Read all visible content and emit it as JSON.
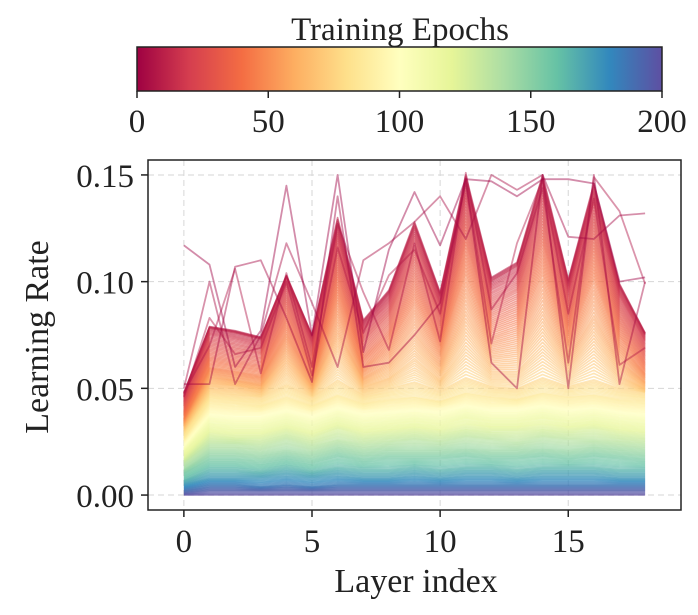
{
  "chart_data": {
    "type": "line",
    "xlabel": "Layer index",
    "ylabel": "Learning Rate",
    "xlim": [
      -1.4,
      19.4
    ],
    "ylim": [
      -0.007,
      0.157
    ],
    "x_ticks": [
      0,
      5,
      10,
      15
    ],
    "x_tick_labels": [
      "0",
      "5",
      "10",
      "15"
    ],
    "y_ticks": [
      0.0,
      0.05,
      0.1,
      0.15
    ],
    "y_tick_labels": [
      "0.00",
      "0.05",
      "0.10",
      "0.15"
    ],
    "grid": true,
    "colorbar": {
      "label": "Training Epochs",
      "min": 0,
      "max": 200,
      "ticks": [
        0,
        50,
        100,
        150,
        200
      ],
      "tick_labels": [
        "0",
        "50",
        "100",
        "150",
        "200"
      ],
      "colormap": "Spectral",
      "colormap_stops": [
        "#9e0142",
        "#d53e4f",
        "#f46d43",
        "#fdae61",
        "#fee08b",
        "#ffffbf",
        "#e6f598",
        "#abdda4",
        "#66c2a5",
        "#3288bd",
        "#5e4fa2"
      ]
    },
    "x": [
      0,
      1,
      2,
      3,
      4,
      5,
      6,
      7,
      8,
      9,
      10,
      11,
      12,
      13,
      14,
      15,
      16,
      17,
      18
    ],
    "series": [
      {
        "epoch": 0,
        "values": [
          0.117,
          0.108,
          0.06,
          0.077,
          0.145,
          0.075,
          0.15,
          0.067,
          0.115,
          0.142,
          0.117,
          0.148,
          0.147,
          0.14,
          0.148,
          0.148,
          0.146,
          0.1,
          0.102
        ]
      },
      {
        "epoch": 2,
        "values": [
          0.052,
          0.052,
          0.107,
          0.11,
          0.083,
          0.053,
          0.14,
          0.06,
          0.062,
          0.075,
          0.09,
          0.147,
          0.062,
          0.05,
          0.15,
          0.121,
          0.12,
          0.131,
          0.132
        ]
      },
      {
        "epoch": 4,
        "values": [
          0.05,
          0.1,
          0.052,
          0.075,
          0.118,
          0.09,
          0.06,
          0.11,
          0.118,
          0.128,
          0.14,
          0.12,
          0.15,
          0.143,
          0.15,
          0.05,
          0.15,
          0.052,
          0.1
        ]
      },
      {
        "epoch": 6,
        "values": [
          0.048,
          0.07,
          0.106,
          0.057,
          0.104,
          0.06,
          0.127,
          0.095,
          0.068,
          0.118,
          0.072,
          0.151,
          0.087,
          0.104,
          0.144,
          0.062,
          0.149,
          0.133,
          0.099
        ]
      },
      {
        "epoch": 8,
        "values": [
          0.046,
          0.083,
          0.066,
          0.069,
          0.1,
          0.056,
          0.116,
          0.076,
          0.103,
          0.115,
          0.085,
          0.148,
          0.071,
          0.118,
          0.148,
          0.085,
          0.139,
          0.061,
          0.069
        ]
      },
      {
        "epoch": 10,
        "values": [
          0.048,
          0.079,
          0.077,
          0.074,
          0.103,
          0.075,
          0.13,
          0.082,
          0.096,
          0.128,
          0.095,
          0.15,
          0.102,
          0.109,
          0.15,
          0.101,
          0.146,
          0.099,
          0.076
        ]
      },
      {
        "epoch": 14,
        "values": [
          0.047,
          0.078,
          0.076,
          0.073,
          0.102,
          0.074,
          0.126,
          0.08,
          0.094,
          0.125,
          0.093,
          0.146,
          0.1,
          0.107,
          0.146,
          0.099,
          0.142,
          0.097,
          0.075
        ]
      },
      {
        "epoch": 20,
        "values": [
          0.045,
          0.075,
          0.073,
          0.07,
          0.098,
          0.071,
          0.12,
          0.077,
          0.09,
          0.119,
          0.089,
          0.139,
          0.096,
          0.102,
          0.139,
          0.095,
          0.136,
          0.093,
          0.072
        ]
      },
      {
        "epoch": 28,
        "values": [
          0.042,
          0.07,
          0.068,
          0.066,
          0.091,
          0.066,
          0.111,
          0.072,
          0.084,
          0.11,
          0.083,
          0.128,
          0.089,
          0.095,
          0.128,
          0.088,
          0.125,
          0.086,
          0.067
        ]
      },
      {
        "epoch": 36,
        "values": [
          0.039,
          0.065,
          0.063,
          0.061,
          0.084,
          0.061,
          0.102,
          0.066,
          0.077,
          0.1,
          0.076,
          0.117,
          0.082,
          0.087,
          0.117,
          0.081,
          0.114,
          0.079,
          0.062
        ]
      },
      {
        "epoch": 45,
        "values": [
          0.036,
          0.06,
          0.058,
          0.056,
          0.076,
          0.056,
          0.091,
          0.06,
          0.07,
          0.089,
          0.069,
          0.103,
          0.074,
          0.078,
          0.103,
          0.073,
          0.101,
          0.071,
          0.057
        ]
      },
      {
        "epoch": 55,
        "values": [
          0.034,
          0.056,
          0.054,
          0.052,
          0.068,
          0.052,
          0.078,
          0.055,
          0.062,
          0.076,
          0.061,
          0.086,
          0.066,
          0.068,
          0.086,
          0.065,
          0.084,
          0.063,
          0.053
        ]
      },
      {
        "epoch": 65,
        "values": [
          0.032,
          0.052,
          0.051,
          0.049,
          0.06,
          0.049,
          0.066,
          0.051,
          0.055,
          0.064,
          0.054,
          0.07,
          0.058,
          0.058,
          0.07,
          0.058,
          0.069,
          0.056,
          0.05
        ]
      },
      {
        "epoch": 75,
        "values": [
          0.03,
          0.048,
          0.047,
          0.046,
          0.052,
          0.046,
          0.054,
          0.047,
          0.05,
          0.053,
          0.049,
          0.055,
          0.051,
          0.05,
          0.055,
          0.051,
          0.054,
          0.05,
          0.048
        ]
      },
      {
        "epoch": 85,
        "values": [
          0.027,
          0.044,
          0.043,
          0.042,
          0.046,
          0.042,
          0.047,
          0.043,
          0.045,
          0.046,
          0.044,
          0.048,
          0.046,
          0.045,
          0.048,
          0.046,
          0.047,
          0.045,
          0.044
        ]
      },
      {
        "epoch": 95,
        "values": [
          0.025,
          0.04,
          0.039,
          0.039,
          0.042,
          0.039,
          0.043,
          0.04,
          0.041,
          0.042,
          0.041,
          0.044,
          0.042,
          0.042,
          0.044,
          0.042,
          0.043,
          0.041,
          0.04
        ]
      },
      {
        "epoch": 105,
        "values": [
          0.022,
          0.036,
          0.035,
          0.035,
          0.038,
          0.035,
          0.039,
          0.036,
          0.037,
          0.038,
          0.037,
          0.04,
          0.038,
          0.038,
          0.04,
          0.038,
          0.039,
          0.037,
          0.036
        ]
      },
      {
        "epoch": 115,
        "values": [
          0.02,
          0.032,
          0.031,
          0.031,
          0.034,
          0.031,
          0.035,
          0.032,
          0.033,
          0.034,
          0.033,
          0.036,
          0.034,
          0.034,
          0.036,
          0.034,
          0.035,
          0.033,
          0.032
        ]
      },
      {
        "epoch": 125,
        "values": [
          0.017,
          0.028,
          0.027,
          0.027,
          0.03,
          0.027,
          0.031,
          0.028,
          0.029,
          0.03,
          0.029,
          0.031,
          0.03,
          0.03,
          0.031,
          0.03,
          0.031,
          0.029,
          0.028
        ]
      },
      {
        "epoch": 135,
        "values": [
          0.015,
          0.024,
          0.024,
          0.023,
          0.026,
          0.023,
          0.026,
          0.024,
          0.025,
          0.026,
          0.025,
          0.027,
          0.026,
          0.025,
          0.027,
          0.026,
          0.026,
          0.025,
          0.024
        ]
      },
      {
        "epoch": 145,
        "values": [
          0.012,
          0.02,
          0.02,
          0.019,
          0.021,
          0.019,
          0.022,
          0.02,
          0.021,
          0.021,
          0.021,
          0.022,
          0.021,
          0.021,
          0.022,
          0.021,
          0.022,
          0.021,
          0.02
        ]
      },
      {
        "epoch": 155,
        "values": [
          0.01,
          0.016,
          0.016,
          0.015,
          0.017,
          0.015,
          0.018,
          0.016,
          0.017,
          0.017,
          0.017,
          0.018,
          0.017,
          0.017,
          0.018,
          0.017,
          0.018,
          0.017,
          0.016
        ]
      },
      {
        "epoch": 165,
        "values": [
          0.007,
          0.012,
          0.012,
          0.011,
          0.013,
          0.011,
          0.013,
          0.012,
          0.012,
          0.013,
          0.012,
          0.013,
          0.013,
          0.012,
          0.013,
          0.013,
          0.013,
          0.012,
          0.012
        ]
      },
      {
        "epoch": 175,
        "values": [
          0.005,
          0.008,
          0.008,
          0.008,
          0.009,
          0.008,
          0.009,
          0.008,
          0.008,
          0.009,
          0.008,
          0.009,
          0.009,
          0.008,
          0.009,
          0.009,
          0.009,
          0.008,
          0.008
        ]
      },
      {
        "epoch": 185,
        "values": [
          0.003,
          0.005,
          0.005,
          0.004,
          0.005,
          0.004,
          0.005,
          0.005,
          0.005,
          0.005,
          0.005,
          0.005,
          0.005,
          0.005,
          0.005,
          0.005,
          0.005,
          0.005,
          0.005
        ]
      },
      {
        "epoch": 195,
        "values": [
          0.001,
          0.002,
          0.002,
          0.002,
          0.002,
          0.002,
          0.002,
          0.002,
          0.002,
          0.002,
          0.002,
          0.002,
          0.002,
          0.002,
          0.002,
          0.002,
          0.002,
          0.002,
          0.002
        ]
      },
      {
        "epoch": 200,
        "values": [
          0.0,
          0.0,
          0.0,
          0.0,
          0.0,
          0.0,
          0.0,
          0.0,
          0.0,
          0.0,
          0.0,
          0.0,
          0.0,
          0.0,
          0.0,
          0.0,
          0.0,
          0.0,
          0.0
        ]
      }
    ]
  }
}
